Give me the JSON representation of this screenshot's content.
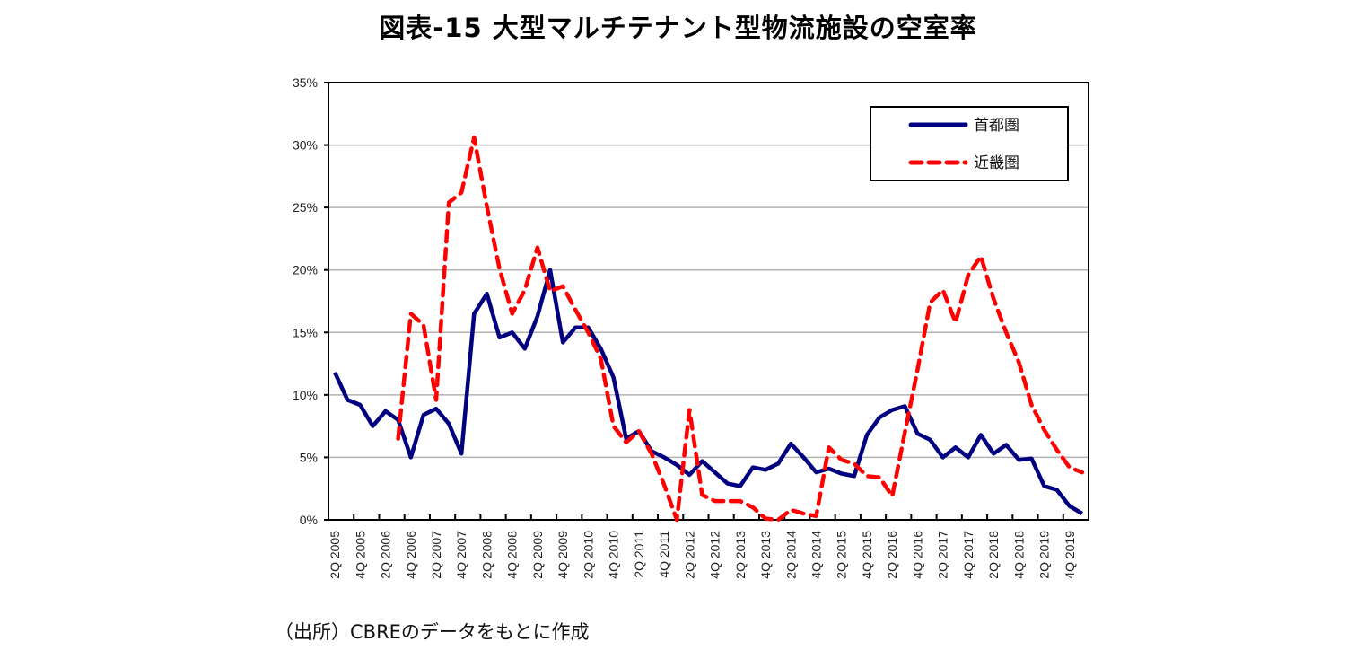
{
  "chart_data": {
    "type": "line",
    "title": "図表-15  大型マルチテナント型物流施設の空室率",
    "xlabel": "",
    "ylabel": "",
    "ylim": [
      0,
      35
    ],
    "yticks": [
      0,
      5,
      10,
      15,
      20,
      25,
      30,
      35
    ],
    "ytick_labels": [
      "0%",
      "5%",
      "10%",
      "15%",
      "20%",
      "25%",
      "30%",
      "35%"
    ],
    "grid": true,
    "legend_position": "top-right",
    "x": [
      "2Q 2005",
      "3Q 2005",
      "4Q 2005",
      "1Q 2006",
      "2Q 2006",
      "3Q 2006",
      "4Q 2006",
      "1Q 2007",
      "2Q 2007",
      "3Q 2007",
      "4Q 2007",
      "1Q 2008",
      "2Q 2008",
      "3Q 2008",
      "4Q 2008",
      "1Q 2009",
      "2Q 2009",
      "3Q 2009",
      "4Q 2009",
      "1Q 2010",
      "2Q 2010",
      "3Q 2010",
      "4Q 2010",
      "1Q 2011",
      "2Q 2011",
      "3Q 2011",
      "4Q 2011",
      "1Q 2012",
      "2Q 2012",
      "3Q 2012",
      "4Q 2012",
      "1Q 2013",
      "2Q 2013",
      "3Q 2013",
      "4Q 2013",
      "1Q 2014",
      "2Q 2014",
      "3Q 2014",
      "4Q 2014",
      "1Q 2015",
      "2Q 2015",
      "3Q 2015",
      "4Q 2015",
      "1Q 2016",
      "2Q 2016",
      "3Q 2016",
      "4Q 2016",
      "1Q 2017",
      "2Q 2017",
      "3Q 2017",
      "4Q 2017",
      "1Q 2018",
      "2Q 2018",
      "3Q 2018",
      "4Q 2018",
      "1Q 2019",
      "2Q 2019",
      "3Q 2019",
      "4Q 2019",
      "1Q 2020"
    ],
    "xtick_labels": [
      "2Q 2005",
      "4Q 2005",
      "2Q 2006",
      "4Q 2006",
      "2Q 2007",
      "4Q 2007",
      "2Q 2008",
      "4Q 2008",
      "2Q 2009",
      "4Q 2009",
      "2Q 2010",
      "4Q 2010",
      "2Q 2011",
      "4Q 2011",
      "2Q 2012",
      "4Q 2012",
      "2Q 2013",
      "4Q 2013",
      "2Q 2014",
      "4Q 2014",
      "2Q 2015",
      "4Q 2015",
      "2Q 2016",
      "4Q 2016",
      "2Q 2017",
      "4Q 2017",
      "2Q 2018",
      "4Q 2018",
      "2Q 2019",
      "4Q 2019"
    ],
    "series": [
      {
        "name": "首都圏",
        "color": "#000080",
        "style": "solid",
        "values": [
          11.8,
          9.6,
          9.2,
          7.5,
          8.7,
          8.0,
          5.0,
          8.4,
          8.9,
          7.7,
          5.3,
          16.5,
          18.1,
          14.6,
          15.0,
          13.7,
          16.3,
          20.0,
          14.2,
          15.4,
          15.4,
          13.7,
          11.4,
          6.5,
          7.1,
          5.5,
          5.0,
          4.4,
          3.6,
          4.7,
          3.8,
          2.9,
          2.7,
          4.2,
          4.0,
          4.5,
          6.1,
          5.0,
          3.8,
          4.1,
          3.7,
          3.5,
          6.8,
          8.2,
          8.8,
          9.1,
          6.9,
          6.4,
          5.0,
          5.8,
          5.0,
          6.8,
          5.3,
          6.0,
          4.8,
          4.9,
          2.7,
          2.4,
          1.1,
          0.5
        ]
      },
      {
        "name": "近畿圏",
        "color": "#ff0000",
        "style": "dashed",
        "values": [
          null,
          null,
          null,
          null,
          null,
          6.5,
          16.5,
          15.6,
          9.6,
          25.4,
          26.2,
          30.6,
          25.1,
          20.1,
          16.5,
          18.4,
          21.8,
          18.3,
          18.7,
          16.8,
          15.0,
          12.9,
          7.5,
          6.2,
          7.1,
          5.3,
          2.8,
          0.0,
          8.8,
          2.0,
          1.5,
          1.5,
          1.5,
          1.0,
          0.1,
          0.0,
          0.8,
          0.5,
          0.3,
          5.8,
          4.8,
          4.5,
          3.5,
          3.4,
          1.9,
          7.0,
          12.0,
          17.4,
          18.4,
          15.8,
          19.6,
          21.1,
          17.7,
          15.0,
          12.6,
          9.2,
          7.2,
          5.6,
          4.2,
          3.8
        ]
      }
    ],
    "source": "（出所）CBREのデータをもとに作成"
  }
}
